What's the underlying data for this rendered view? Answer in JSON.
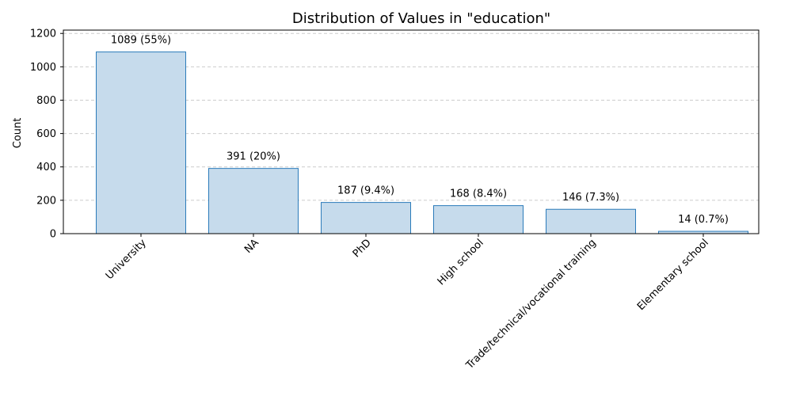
{
  "chart_data": {
    "type": "bar",
    "title": "Distribution of Values in \"education\"",
    "xlabel": "",
    "ylabel": "Count",
    "categories": [
      "University",
      "NA",
      "PhD",
      "High school",
      "Trade/technical/vocational training",
      "Elementary school"
    ],
    "values": [
      1089,
      391,
      187,
      168,
      146,
      14
    ],
    "bar_labels": [
      "1089 (55%)",
      "391 (20%)",
      "187 (9.4%)",
      "168 (8.4%)",
      "146 (7.3%)",
      "14 (0.7%)"
    ],
    "ylim": [
      0,
      1220
    ],
    "yticks": [
      0,
      200,
      400,
      600,
      800,
      1000,
      1200
    ],
    "grid": "y-dashed",
    "colors": {
      "bar_fill": "#c6dbec",
      "bar_edge": "#2b7bba",
      "grid": "#cccccc",
      "axis": "#000000"
    }
  }
}
